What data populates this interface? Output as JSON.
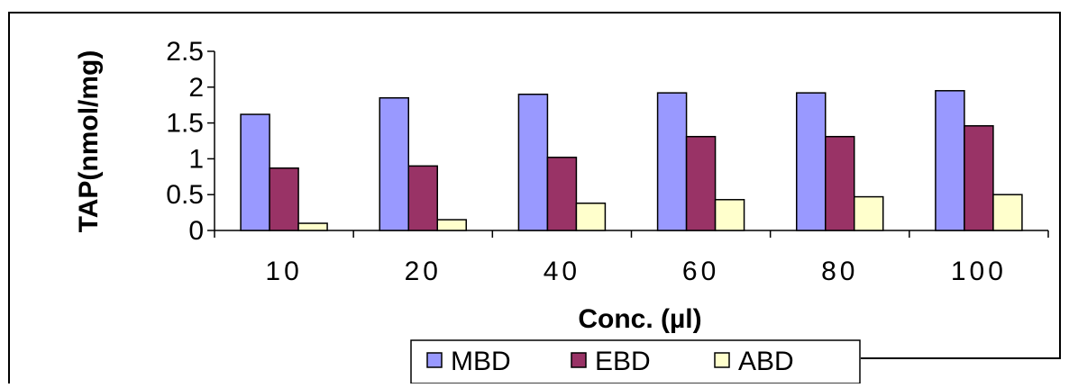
{
  "chart_data": {
    "type": "bar",
    "title": "",
    "xlabel": "Conc. (µl)",
    "ylabel": "TAP(nmol/mg)",
    "categories": [
      "10",
      "20",
      "40",
      "60",
      "80",
      "100"
    ],
    "series": [
      {
        "name": "MBD",
        "color": "#9999ff",
        "values": [
          1.62,
          1.85,
          1.9,
          1.92,
          1.92,
          1.95
        ]
      },
      {
        "name": "EBD",
        "color": "#993366",
        "values": [
          0.87,
          0.9,
          1.02,
          1.31,
          1.31,
          1.46
        ]
      },
      {
        "name": "ABD",
        "color": "#ffffcc",
        "values": [
          0.1,
          0.15,
          0.38,
          0.43,
          0.47,
          0.5
        ]
      }
    ],
    "ylim": [
      0,
      2.5
    ],
    "yticks": [
      "0",
      "0.5",
      "1",
      "1.5",
      "2",
      "2.5"
    ],
    "yticks_values": [
      0,
      0.5,
      1,
      1.5,
      2,
      2.5
    ],
    "grid": false,
    "legend_position": "bottom"
  }
}
